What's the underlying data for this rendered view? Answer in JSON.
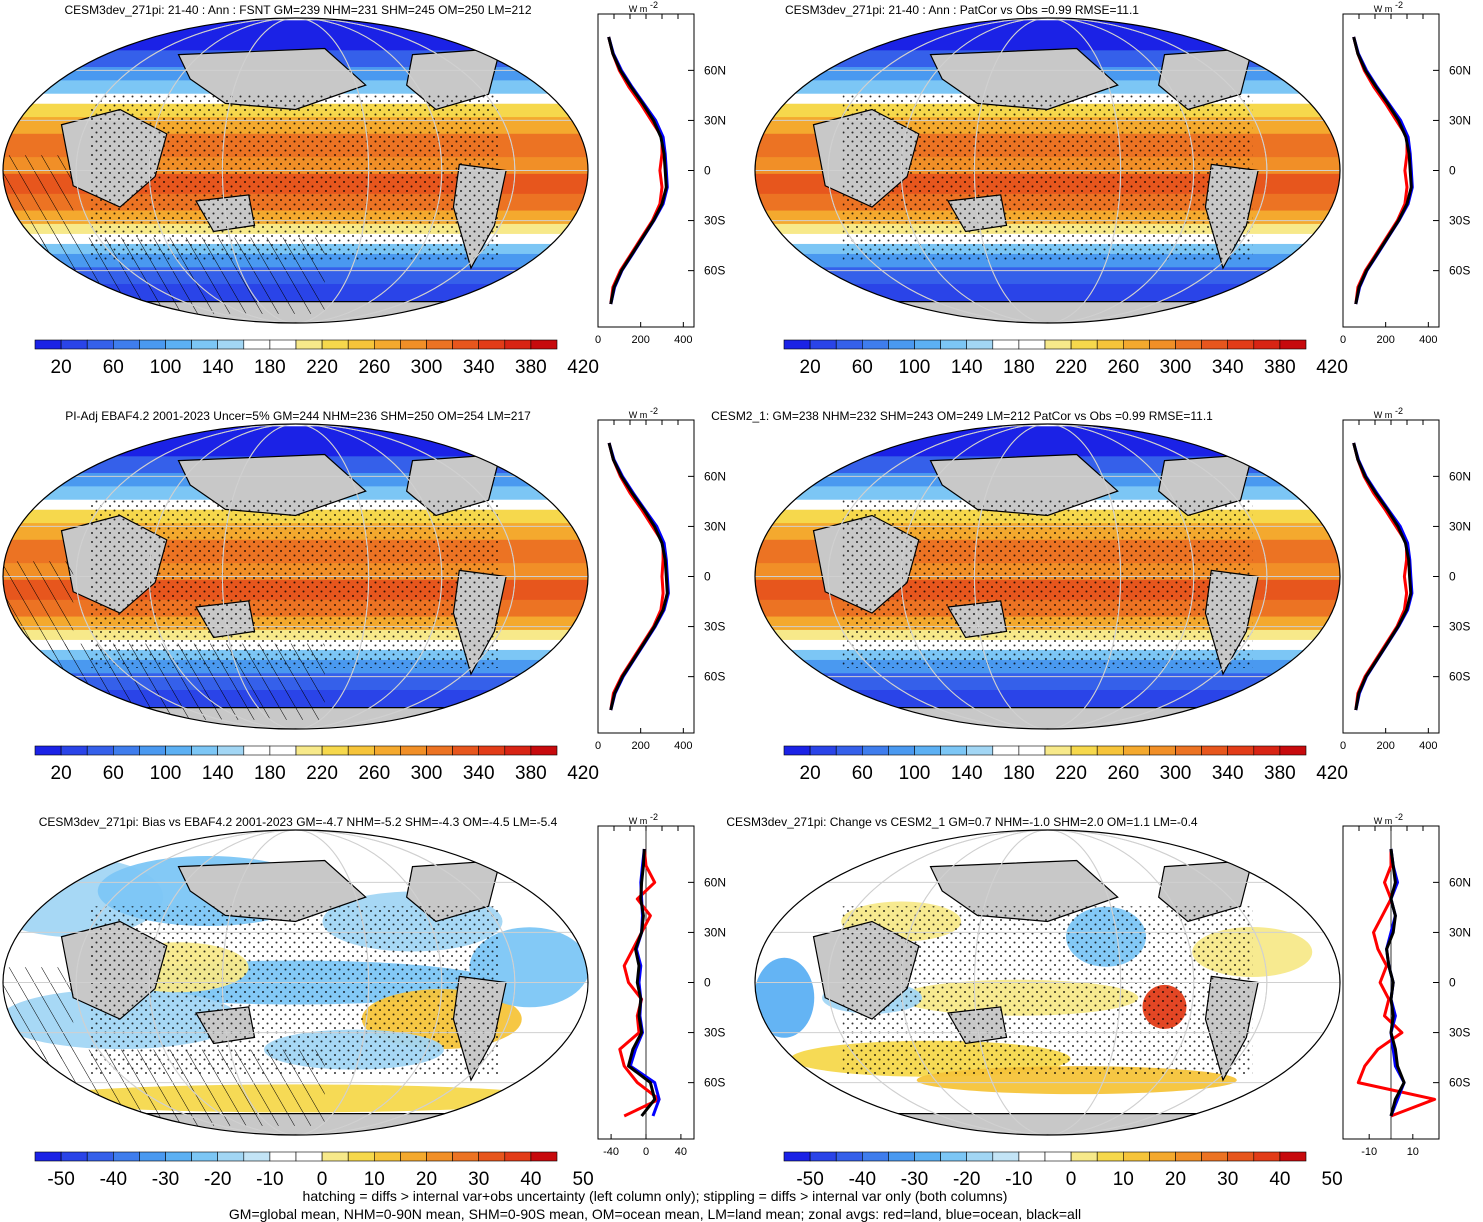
{
  "panels": [
    {
      "title": "CESM3dev_271pi: 21-40 : Ann : FSNT GM=239 NHM=231 SHM=245 OM=250 LM=212",
      "kind": "abs",
      "colorbar_labels": [
        "20",
        "60",
        "100",
        "140",
        "180",
        "220",
        "260",
        "300",
        "340",
        "380",
        "420"
      ],
      "zonal_xticks": [
        "0",
        "200",
        "400"
      ],
      "hatching": true
    },
    {
      "title": "CESM3dev_271pi: 21-40 : Ann : PatCor vs Obs =0.99 RMSE=11.1",
      "kind": "abs",
      "colorbar_labels": [
        "20",
        "60",
        "100",
        "140",
        "180",
        "220",
        "260",
        "300",
        "340",
        "380",
        "420"
      ],
      "zonal_xticks": [
        "0",
        "200",
        "400"
      ],
      "hatching": false
    },
    {
      "title": "PI-Adj EBAF4.2 2001-2023 Uncer=5% GM=244 NHM=236 SHM=250 OM=254 LM=217",
      "kind": "abs",
      "colorbar_labels": [
        "20",
        "60",
        "100",
        "140",
        "180",
        "220",
        "260",
        "300",
        "340",
        "380",
        "420"
      ],
      "zonal_xticks": [
        "0",
        "200",
        "400"
      ],
      "hatching": true
    },
    {
      "title": "CESM2_1: GM=238 NHM=232 SHM=243 OM=249 LM=212 PatCor vs Obs =0.99 RMSE=11.1",
      "kind": "abs",
      "colorbar_labels": [
        "20",
        "60",
        "100",
        "140",
        "180",
        "220",
        "260",
        "300",
        "340",
        "380",
        "420"
      ],
      "zonal_xticks": [
        "0",
        "200",
        "400"
      ],
      "hatching": false
    },
    {
      "title": "CESM3dev_271pi: Bias vs EBAF4.2 2001-2023 GM=-4.7 NHM=-5.2 SHM=-4.3 OM=-4.5 LM=-5.4",
      "kind": "diff",
      "colorbar_labels": [
        "-50",
        "-40",
        "-30",
        "-20",
        "-10",
        "0",
        "10",
        "20",
        "30",
        "40",
        "50"
      ],
      "zonal_xticks": [
        "-40",
        "0",
        "40"
      ],
      "hatching": true
    },
    {
      "title": "CESM3dev_271pi: Change vs CESM2_1 GM=0.7 NHM=-1.0 SHM=2.0 OM=1.1 LM=-0.4",
      "kind": "diff",
      "colorbar_labels": [
        "-50",
        "-40",
        "-30",
        "-20",
        "-10",
        "0",
        "10",
        "20",
        "30",
        "40",
        "50"
      ],
      "zonal_xticks": [
        "-10",
        "10"
      ],
      "hatching": false
    }
  ],
  "lat_labels": [
    "60N",
    "30N",
    "0",
    "30S",
    "60S"
  ],
  "zonal_unit": "W m",
  "zonal_unit_sup": "-2",
  "footer": {
    "line1": "hatching = diffs > internal var+obs uncertainty (left column only); stippling = diffs > internal var only (both columns)",
    "line2": "GM=global mean, NHM=0-90N mean, SHM=0-90S mean, OM=ocean mean, LM=land mean; zonal avgs: red=land, blue=ocean, black=all"
  },
  "colors": {
    "abs_scale": [
      "#1b22e6",
      "#2a44e8",
      "#3560ea",
      "#3f7ded",
      "#4a99f0",
      "#5cb0f3",
      "#7cc6f5",
      "#a2d6f4",
      "#ffffff",
      "#ffffff",
      "#f7e98a",
      "#f6d84c",
      "#f6c43a",
      "#f4a92e",
      "#f18f27",
      "#ec7323",
      "#e7561d",
      "#e23c18",
      "#d82414",
      "#c70a0d"
    ],
    "diff_scale": [
      "#1b22e6",
      "#2a44e8",
      "#3560ea",
      "#3f7ded",
      "#4a99f0",
      "#5cb0f3",
      "#7cc6f5",
      "#a2d6f4",
      "#c3e4f6",
      "#ffffff",
      "#ffffff",
      "#f7e98a",
      "#f6d84c",
      "#f6c43a",
      "#f4a92e",
      "#f18f27",
      "#ec7323",
      "#e7561d",
      "#e23c18",
      "#c70a0d"
    ],
    "land_line": "red",
    "ocean_line": "blue",
    "all_line": "black",
    "land_mask": "#c8c8c8"
  },
  "chart_data": [
    {
      "type": "heatmap",
      "title": "CESM3dev_271pi: 21-40 : Ann : FSNT GM=239 NHM=231 SHM=245 OM=250 LM=212",
      "colorbar_ticks": [
        20,
        60,
        100,
        140,
        180,
        220,
        260,
        300,
        340,
        380,
        420
      ],
      "zonal_mean": {
        "lat": [
          -80,
          -70,
          -60,
          -50,
          -40,
          -30,
          -20,
          -10,
          0,
          10,
          20,
          30,
          40,
          50,
          60,
          70,
          80
        ],
        "all": [
          60,
          75,
          110,
          160,
          210,
          260,
          300,
          320,
          315,
          310,
          295,
          260,
          210,
          155,
          105,
          70,
          50
        ],
        "land": [
          60,
          70,
          105,
          155,
          205,
          255,
          290,
          300,
          290,
          300,
          300,
          250,
          200,
          145,
          100,
          70,
          50
        ],
        "ocean": [
          60,
          78,
          112,
          162,
          212,
          262,
          305,
          325,
          320,
          315,
          305,
          270,
          215,
          160,
          110,
          72,
          50
        ]
      }
    },
    {
      "type": "heatmap",
      "title": "CESM3dev_271pi: 21-40 : Ann : PatCor vs Obs =0.99 RMSE=11.1",
      "colorbar_ticks": [
        20,
        60,
        100,
        140,
        180,
        220,
        260,
        300,
        340,
        380,
        420
      ],
      "zonal_mean": {
        "lat": [
          -80,
          -70,
          -60,
          -50,
          -40,
          -30,
          -20,
          -10,
          0,
          10,
          20,
          30,
          40,
          50,
          60,
          70,
          80
        ],
        "all": [
          60,
          75,
          110,
          160,
          210,
          260,
          300,
          320,
          315,
          310,
          295,
          260,
          210,
          155,
          105,
          70,
          50
        ],
        "land": [
          60,
          70,
          105,
          155,
          205,
          255,
          290,
          300,
          290,
          300,
          300,
          250,
          200,
          145,
          100,
          70,
          50
        ],
        "ocean": [
          60,
          78,
          112,
          162,
          212,
          262,
          305,
          325,
          320,
          315,
          305,
          270,
          215,
          160,
          110,
          72,
          50
        ]
      }
    },
    {
      "type": "heatmap",
      "title": "PI-Adj EBAF4.2 2001-2023 Uncer=5% GM=244 NHM=236 SHM=250 OM=254 LM=217",
      "colorbar_ticks": [
        20,
        60,
        100,
        140,
        180,
        220,
        260,
        300,
        340,
        380,
        420
      ],
      "zonal_mean": {
        "lat": [
          -80,
          -70,
          -60,
          -50,
          -40,
          -30,
          -20,
          -10,
          0,
          10,
          20,
          30,
          40,
          50,
          60,
          70,
          80
        ],
        "all": [
          60,
          78,
          115,
          165,
          215,
          265,
          305,
          325,
          320,
          315,
          300,
          265,
          215,
          160,
          110,
          72,
          52
        ],
        "land": [
          60,
          72,
          110,
          160,
          210,
          260,
          295,
          305,
          300,
          305,
          305,
          255,
          205,
          150,
          105,
          72,
          52
        ],
        "ocean": [
          60,
          80,
          118,
          168,
          218,
          268,
          310,
          330,
          325,
          320,
          310,
          275,
          220,
          165,
          115,
          75,
          52
        ]
      }
    },
    {
      "type": "heatmap",
      "title": "CESM2_1: GM=238 NHM=232 SHM=243 OM=249 LM=212 PatCor vs Obs =0.99 RMSE=11.1",
      "colorbar_ticks": [
        20,
        60,
        100,
        140,
        180,
        220,
        260,
        300,
        340,
        380,
        420
      ],
      "zonal_mean": {
        "lat": [
          -80,
          -70,
          -60,
          -50,
          -40,
          -30,
          -20,
          -10,
          0,
          10,
          20,
          30,
          40,
          50,
          60,
          70,
          80
        ],
        "all": [
          60,
          74,
          108,
          158,
          208,
          258,
          298,
          318,
          312,
          308,
          293,
          258,
          208,
          153,
          104,
          70,
          50
        ],
        "land": [
          60,
          70,
          103,
          153,
          203,
          253,
          288,
          298,
          288,
          298,
          298,
          248,
          198,
          143,
          99,
          70,
          50
        ],
        "ocean": [
          60,
          77,
          110,
          160,
          210,
          260,
          303,
          323,
          318,
          313,
          303,
          268,
          213,
          158,
          108,
          72,
          50
        ]
      }
    },
    {
      "type": "heatmap",
      "title": "CESM3dev_271pi: Bias vs EBAF4.2 2001-2023 GM=-4.7 NHM=-5.2 SHM=-4.3 OM=-4.5 LM=-5.4",
      "colorbar_ticks": [
        -50,
        -40,
        -30,
        -20,
        -10,
        0,
        10,
        20,
        30,
        40,
        50
      ],
      "zonal_mean": {
        "lat": [
          -80,
          -70,
          -60,
          -50,
          -40,
          -30,
          -20,
          -10,
          0,
          10,
          20,
          30,
          40,
          50,
          60,
          70,
          80
        ],
        "all": [
          -5,
          10,
          5,
          -20,
          -15,
          -5,
          -8,
          -6,
          -10,
          -8,
          -12,
          -5,
          -3,
          -6,
          -5,
          -3,
          -2
        ],
        "land": [
          -25,
          15,
          -10,
          -25,
          -30,
          -8,
          -10,
          -5,
          -20,
          -25,
          -15,
          -5,
          5,
          -10,
          10,
          0,
          -2
        ],
        "ocean": [
          8,
          15,
          10,
          -18,
          -12,
          -4,
          -7,
          -6,
          -8,
          -6,
          -11,
          -5,
          -4,
          -5,
          -6,
          -4,
          -2
        ]
      }
    },
    {
      "type": "heatmap",
      "title": "CESM3dev_271pi: Change vs CESM2_1 GM=0.7 NHM=-1.0 SHM=2.0 OM=1.1 LM=-0.4",
      "colorbar_ticks": [
        -50,
        -40,
        -30,
        -20,
        -10,
        0,
        10,
        20,
        30,
        40,
        50
      ],
      "zonal_mean": {
        "lat": [
          -80,
          -70,
          -60,
          -50,
          -40,
          -30,
          -20,
          -10,
          0,
          10,
          20,
          30,
          40,
          50,
          60,
          70,
          80
        ],
        "all": [
          0,
          2,
          6,
          3,
          2,
          0,
          1,
          0,
          1,
          -1,
          -2,
          1,
          2,
          0,
          2,
          1,
          0
        ],
        "land": [
          0,
          20,
          -15,
          -12,
          -6,
          5,
          -3,
          -1,
          -5,
          -2,
          -6,
          -8,
          -4,
          0,
          -3,
          0,
          0
        ],
        "ocean": [
          0,
          3,
          6,
          2,
          1,
          0,
          2,
          0,
          1,
          -1,
          -2,
          0,
          2,
          0,
          3,
          1,
          0
        ]
      }
    }
  ]
}
